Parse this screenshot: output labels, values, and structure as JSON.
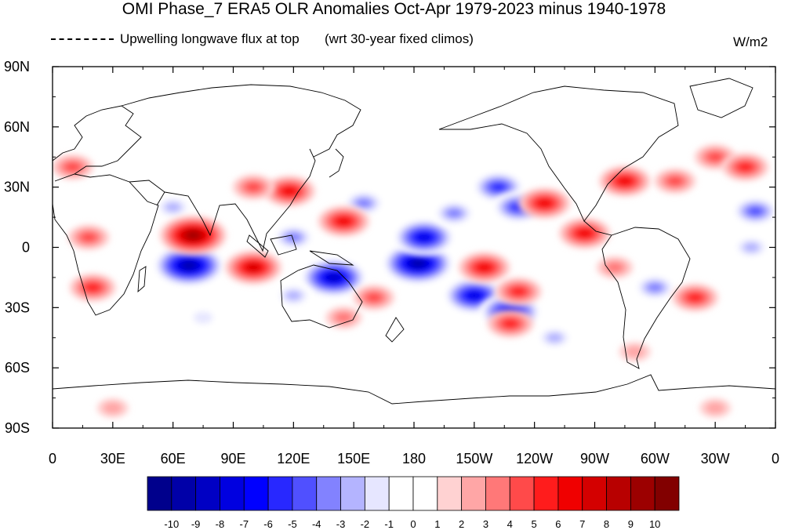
{
  "title": "OMI Phase_7 ERA5 OLR Anomalies Oct-Apr 1979-2023 minus 1940-1978",
  "subtitle_left": "Upwelling longwave flux at top",
  "subtitle_center": "(wrt 30-year fixed climos)",
  "units": "W/m2",
  "lat_labels": [
    "90N",
    "60N",
    "30N",
    "0",
    "30S",
    "60S",
    "90S"
  ],
  "lon_labels": [
    "0",
    "30E",
    "60E",
    "90E",
    "120E",
    "150E",
    "180",
    "150W",
    "120W",
    "90W",
    "60W",
    "30W",
    "0"
  ],
  "colorbar": {
    "labels": [
      "-10",
      "-9",
      "-8",
      "-7",
      "-6",
      "-5",
      "-4",
      "-3",
      "-2",
      "-1",
      "0",
      "1",
      "2",
      "3",
      "4",
      "5",
      "6",
      "7",
      "8",
      "9",
      "10"
    ],
    "colors": [
      "#00008c",
      "#0000a8",
      "#0000c4",
      "#0000e0",
      "#0000ff",
      "#2828ff",
      "#5050ff",
      "#8282ff",
      "#b4b4ff",
      "#e6e6ff",
      "#ffffff",
      "#ffffff",
      "#ffd2d2",
      "#ffa6a6",
      "#ff7878",
      "#ff4a4a",
      "#ff1c1c",
      "#f00000",
      "#d40000",
      "#b80000",
      "#9c0000",
      "#820000"
    ]
  },
  "anomaly_blobs": [
    {
      "lon": 68,
      "lat": -9,
      "value": -10
    },
    {
      "lon": 140,
      "lat": -15,
      "value": -9
    },
    {
      "lon": 182,
      "lat": -8,
      "value": -10
    },
    {
      "lon": 185,
      "lat": 5,
      "value": -8
    },
    {
      "lon": 210,
      "lat": -24,
      "value": -8
    },
    {
      "lon": 228,
      "lat": -32,
      "value": -8
    },
    {
      "lon": 222,
      "lat": 30,
      "value": -6
    },
    {
      "lon": 232,
      "lat": 20,
      "value": -6
    },
    {
      "lon": 155,
      "lat": 22,
      "value": -4
    },
    {
      "lon": 200,
      "lat": 17,
      "value": -4
    },
    {
      "lon": 120,
      "lat": 5,
      "value": -4
    },
    {
      "lon": 350,
      "lat": 18,
      "value": -5
    },
    {
      "lon": 348,
      "lat": 0,
      "value": -3
    },
    {
      "lon": 300,
      "lat": -20,
      "value": -4
    },
    {
      "lon": 120,
      "lat": -24,
      "value": -3
    },
    {
      "lon": 75,
      "lat": -35,
      "value": -2
    },
    {
      "lon": 60,
      "lat": 20,
      "value": -3
    },
    {
      "lon": 250,
      "lat": -45,
      "value": -3
    },
    {
      "lon": 70,
      "lat": 6,
      "value": 9
    },
    {
      "lon": 100,
      "lat": -10,
      "value": 7
    },
    {
      "lon": 118,
      "lat": 28,
      "value": 6
    },
    {
      "lon": 100,
      "lat": 30,
      "value": 4
    },
    {
      "lon": 145,
      "lat": 13,
      "value": 6
    },
    {
      "lon": 215,
      "lat": -10,
      "value": 6
    },
    {
      "lon": 265,
      "lat": 7,
      "value": 6
    },
    {
      "lon": 285,
      "lat": 33,
      "value": 6
    },
    {
      "lon": 245,
      "lat": 22,
      "value": 6
    },
    {
      "lon": 310,
      "lat": 33,
      "value": 4
    },
    {
      "lon": 330,
      "lat": 45,
      "value": 4
    },
    {
      "lon": 345,
      "lat": 40,
      "value": 5
    },
    {
      "lon": 20,
      "lat": -20,
      "value": 5
    },
    {
      "lon": 18,
      "lat": 5,
      "value": 4
    },
    {
      "lon": 10,
      "lat": 40,
      "value": 4
    },
    {
      "lon": 320,
      "lat": -25,
      "value": 5
    },
    {
      "lon": 232,
      "lat": -22,
      "value": 5
    },
    {
      "lon": 228,
      "lat": -38,
      "value": 5
    },
    {
      "lon": 160,
      "lat": -25,
      "value": 4
    },
    {
      "lon": 280,
      "lat": -10,
      "value": 3
    },
    {
      "lon": 30,
      "lat": -80,
      "value": 2
    },
    {
      "lon": 330,
      "lat": -80,
      "value": 2
    },
    {
      "lon": 290,
      "lat": -52,
      "value": 2
    },
    {
      "lon": 145,
      "lat": -35,
      "value": 3
    }
  ]
}
